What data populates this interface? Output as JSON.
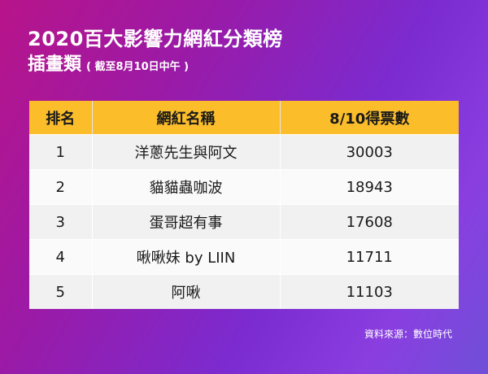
{
  "header": {
    "title": "2020百大影響力網紅分類榜",
    "subtitle": "插畫類",
    "note": "( 截至8月10日中午 )"
  },
  "table": {
    "columns": [
      "排名",
      "網紅名稱",
      "8/10得票數"
    ],
    "rows": [
      {
        "rank": "1",
        "name": "洋蔥先生與阿文",
        "votes": "30003"
      },
      {
        "rank": "2",
        "name": "貓貓蟲咖波",
        "votes": "18943"
      },
      {
        "rank": "3",
        "name": "蛋哥超有事",
        "votes": "17608"
      },
      {
        "rank": "4",
        "name": "啾啾妹 by LIIN",
        "votes": "11711"
      },
      {
        "rank": "5",
        "name": "阿啾",
        "votes": "11103"
      }
    ]
  },
  "footer": {
    "source": "資料來源：數位時代"
  },
  "colors": {
    "header_fill": "#fbbd2a",
    "text_light": "#ffffff"
  }
}
